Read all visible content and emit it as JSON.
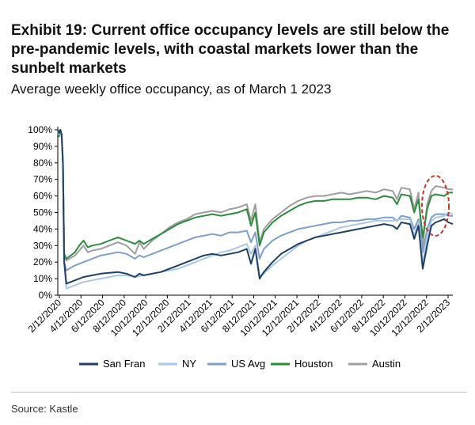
{
  "title": "Exhibit 19: Current office occupancy levels are still below the pre-pandemic levels, with coastal markets lower than the sunbelt markets",
  "subtitle": "Average weekly office occupancy, as of March 1 2023",
  "source": "Source: Kastle",
  "chart_data": {
    "type": "line",
    "xlabel": "",
    "ylabel": "",
    "ylim": [
      0,
      100
    ],
    "y_ticks": [
      "0%",
      "10%",
      "20%",
      "30%",
      "40%",
      "50%",
      "60%",
      "70%",
      "80%",
      "90%",
      "100%"
    ],
    "x_ticks": [
      "2/12/2020",
      "4/12/2020",
      "6/12/2020",
      "8/12/2020",
      "10/12/2020",
      "12/12/2020",
      "2/12/2021",
      "4/12/2021",
      "6/12/2021",
      "8/12/2021",
      "10/12/2021",
      "12/12/2021",
      "2/12/2022",
      "4/12/2022",
      "6/12/2022",
      "8/12/2022",
      "10/12/2022",
      "12/12/2022",
      "2/12/2023"
    ],
    "legend_position": "bottom",
    "grid": false,
    "annotation": "dashed red ellipse highlighting latest values",
    "series": [
      {
        "name": "San Fran",
        "color": "#1f3f63",
        "points": [
          [
            0,
            100
          ],
          [
            0.15,
            98
          ],
          [
            0.3,
            100
          ],
          [
            0.45,
            97
          ],
          [
            0.6,
            80
          ],
          [
            0.75,
            20
          ],
          [
            1,
            7
          ],
          [
            2,
            9
          ],
          [
            3,
            11
          ],
          [
            4,
            12
          ],
          [
            5,
            13
          ],
          [
            6,
            13.5
          ],
          [
            7,
            14
          ],
          [
            8,
            13
          ],
          [
            9,
            11
          ],
          [
            9.5,
            13
          ],
          [
            10,
            12
          ],
          [
            11,
            13
          ],
          [
            12,
            14
          ],
          [
            13,
            16
          ],
          [
            14,
            18
          ],
          [
            15,
            20
          ],
          [
            16,
            22
          ],
          [
            17,
            24
          ],
          [
            18,
            25
          ],
          [
            19,
            24
          ],
          [
            20,
            25
          ],
          [
            21,
            26
          ],
          [
            22,
            28
          ],
          [
            22.5,
            19
          ],
          [
            23,
            28
          ],
          [
            23.5,
            10
          ],
          [
            24,
            14
          ],
          [
            25,
            20
          ],
          [
            26,
            25
          ],
          [
            27,
            28
          ],
          [
            28,
            31
          ],
          [
            29,
            33
          ],
          [
            30,
            35
          ],
          [
            31,
            36
          ],
          [
            32,
            37
          ],
          [
            33,
            38
          ],
          [
            34,
            39
          ],
          [
            35,
            40
          ],
          [
            36,
            41
          ],
          [
            37,
            42
          ],
          [
            38,
            43
          ],
          [
            39,
            42
          ],
          [
            39.5,
            40
          ],
          [
            40,
            44
          ],
          [
            41,
            43
          ],
          [
            41.5,
            34
          ],
          [
            42,
            42
          ],
          [
            42.5,
            16
          ],
          [
            43,
            30
          ],
          [
            43.5,
            42
          ],
          [
            44,
            44
          ],
          [
            45,
            46
          ],
          [
            45.5,
            44
          ],
          [
            46,
            43
          ]
        ]
      },
      {
        "name": "NY",
        "color": "#a9c8e6",
        "points": [
          [
            0,
            100
          ],
          [
            0.15,
            97
          ],
          [
            0.3,
            100
          ],
          [
            0.45,
            96
          ],
          [
            0.6,
            80
          ],
          [
            0.75,
            20
          ],
          [
            1,
            4
          ],
          [
            2,
            6
          ],
          [
            3,
            8
          ],
          [
            4,
            9
          ],
          [
            5,
            10
          ],
          [
            6,
            11
          ],
          [
            7,
            12
          ],
          [
            8,
            12
          ],
          [
            9,
            11
          ],
          [
            10,
            12
          ],
          [
            11,
            13
          ],
          [
            12,
            14
          ],
          [
            13,
            15
          ],
          [
            14,
            16
          ],
          [
            15,
            18
          ],
          [
            16,
            20
          ],
          [
            17,
            22
          ],
          [
            18,
            24
          ],
          [
            19,
            26
          ],
          [
            20,
            27
          ],
          [
            21,
            29
          ],
          [
            22,
            31
          ],
          [
            22.5,
            25
          ],
          [
            23,
            30
          ],
          [
            23.5,
            12
          ],
          [
            24,
            13
          ],
          [
            25,
            18
          ],
          [
            26,
            22
          ],
          [
            27,
            26
          ],
          [
            28,
            30
          ],
          [
            29,
            33
          ],
          [
            30,
            35
          ],
          [
            31,
            37
          ],
          [
            32,
            39
          ],
          [
            33,
            41
          ],
          [
            34,
            42
          ],
          [
            35,
            43
          ],
          [
            36,
            44
          ],
          [
            37,
            45
          ],
          [
            38,
            45
          ],
          [
            39,
            45
          ],
          [
            40,
            46
          ],
          [
            41,
            46
          ],
          [
            41.5,
            36
          ],
          [
            42,
            44
          ],
          [
            42.5,
            19
          ],
          [
            43,
            35
          ],
          [
            43.5,
            45
          ],
          [
            44,
            47
          ],
          [
            45,
            48
          ],
          [
            45.5,
            50
          ],
          [
            46,
            49
          ]
        ]
      },
      {
        "name": "US Avg",
        "color": "#7f9fc4",
        "points": [
          [
            0,
            100
          ],
          [
            0.15,
            98
          ],
          [
            0.3,
            100
          ],
          [
            0.45,
            97
          ],
          [
            0.6,
            80
          ],
          [
            0.75,
            20
          ],
          [
            1,
            15
          ],
          [
            2,
            18
          ],
          [
            3,
            20
          ],
          [
            4,
            22
          ],
          [
            5,
            24
          ],
          [
            6,
            25
          ],
          [
            7,
            26
          ],
          [
            8,
            25
          ],
          [
            9,
            22
          ],
          [
            9.5,
            24
          ],
          [
            10,
            23
          ],
          [
            11,
            25
          ],
          [
            12,
            27
          ],
          [
            13,
            29
          ],
          [
            14,
            31
          ],
          [
            15,
            33
          ],
          [
            16,
            35
          ],
          [
            17,
            36
          ],
          [
            18,
            37
          ],
          [
            19,
            36
          ],
          [
            20,
            38
          ],
          [
            21,
            38
          ],
          [
            22,
            39
          ],
          [
            22.5,
            32
          ],
          [
            23,
            38
          ],
          [
            23.5,
            22
          ],
          [
            24,
            28
          ],
          [
            25,
            33
          ],
          [
            26,
            36
          ],
          [
            27,
            38
          ],
          [
            28,
            40
          ],
          [
            29,
            41
          ],
          [
            30,
            42
          ],
          [
            31,
            43
          ],
          [
            32,
            44
          ],
          [
            33,
            44
          ],
          [
            34,
            45
          ],
          [
            35,
            45
          ],
          [
            36,
            46
          ],
          [
            37,
            46
          ],
          [
            38,
            47
          ],
          [
            39,
            47
          ],
          [
            39.5,
            45
          ],
          [
            40,
            48
          ],
          [
            41,
            47
          ],
          [
            41.5,
            40
          ],
          [
            42,
            46
          ],
          [
            42.5,
            26
          ],
          [
            43,
            40
          ],
          [
            43.5,
            47
          ],
          [
            44,
            49
          ],
          [
            45,
            49
          ],
          [
            45.5,
            48
          ],
          [
            46,
            48
          ]
        ]
      },
      {
        "name": "Houston",
        "color": "#2e8b3e",
        "points": [
          [
            0,
            100
          ],
          [
            0.15,
            96
          ],
          [
            0.3,
            99
          ],
          [
            0.45,
            96
          ],
          [
            0.6,
            80
          ],
          [
            0.75,
            25
          ],
          [
            1,
            22
          ],
          [
            2,
            26
          ],
          [
            2.5,
            30
          ],
          [
            3,
            33
          ],
          [
            3.5,
            29
          ],
          [
            4,
            30
          ],
          [
            5,
            31
          ],
          [
            6,
            33
          ],
          [
            7,
            35
          ],
          [
            8,
            33
          ],
          [
            9,
            31
          ],
          [
            9.5,
            33
          ],
          [
            10,
            31
          ],
          [
            11,
            34
          ],
          [
            12,
            37
          ],
          [
            13,
            40
          ],
          [
            14,
            43
          ],
          [
            15,
            45
          ],
          [
            16,
            47
          ],
          [
            17,
            48
          ],
          [
            18,
            49
          ],
          [
            19,
            48
          ],
          [
            20,
            49
          ],
          [
            21,
            50
          ],
          [
            22,
            52
          ],
          [
            22.5,
            42
          ],
          [
            23,
            50
          ],
          [
            23.5,
            30
          ],
          [
            24,
            38
          ],
          [
            25,
            44
          ],
          [
            26,
            48
          ],
          [
            27,
            51
          ],
          [
            28,
            54
          ],
          [
            29,
            56
          ],
          [
            30,
            57
          ],
          [
            31,
            57
          ],
          [
            32,
            58
          ],
          [
            33,
            58
          ],
          [
            34,
            58
          ],
          [
            35,
            59
          ],
          [
            36,
            59
          ],
          [
            37,
            58
          ],
          [
            38,
            60
          ],
          [
            39,
            59
          ],
          [
            39.5,
            55
          ],
          [
            40,
            61
          ],
          [
            41,
            60
          ],
          [
            41.5,
            50
          ],
          [
            42,
            58
          ],
          [
            42.5,
            35
          ],
          [
            43,
            52
          ],
          [
            43.5,
            60
          ],
          [
            44,
            61
          ],
          [
            45,
            60
          ],
          [
            45.5,
            62
          ],
          [
            46,
            62
          ]
        ]
      },
      {
        "name": "Austin",
        "color": "#9e9e9e",
        "points": [
          [
            0,
            100
          ],
          [
            0.15,
            97
          ],
          [
            0.3,
            100
          ],
          [
            0.45,
            97
          ],
          [
            0.6,
            80
          ],
          [
            0.75,
            25
          ],
          [
            1,
            21
          ],
          [
            2,
            24
          ],
          [
            2.5,
            27
          ],
          [
            3,
            30
          ],
          [
            3.5,
            26
          ],
          [
            4,
            27
          ],
          [
            5,
            28
          ],
          [
            6,
            30
          ],
          [
            7,
            32
          ],
          [
            8,
            30
          ],
          [
            9,
            25
          ],
          [
            9.5,
            32
          ],
          [
            10,
            28
          ],
          [
            11,
            33
          ],
          [
            12,
            37
          ],
          [
            13,
            41
          ],
          [
            14,
            44
          ],
          [
            15,
            46
          ],
          [
            16,
            49
          ],
          [
            17,
            50
          ],
          [
            18,
            51
          ],
          [
            19,
            50
          ],
          [
            20,
            52
          ],
          [
            21,
            53
          ],
          [
            22,
            55
          ],
          [
            22.5,
            45
          ],
          [
            23,
            55
          ],
          [
            23.5,
            32
          ],
          [
            24,
            40
          ],
          [
            25,
            46
          ],
          [
            26,
            50
          ],
          [
            27,
            54
          ],
          [
            28,
            57
          ],
          [
            29,
            59
          ],
          [
            30,
            60
          ],
          [
            31,
            60
          ],
          [
            32,
            61
          ],
          [
            33,
            62
          ],
          [
            34,
            61
          ],
          [
            35,
            62
          ],
          [
            36,
            63
          ],
          [
            37,
            62
          ],
          [
            38,
            64
          ],
          [
            39,
            63
          ],
          [
            39.5,
            58
          ],
          [
            40,
            65
          ],
          [
            41,
            64
          ],
          [
            41.5,
            52
          ],
          [
            42,
            62
          ],
          [
            42.5,
            30
          ],
          [
            43,
            55
          ],
          [
            43.5,
            63
          ],
          [
            44,
            66
          ],
          [
            45,
            65
          ],
          [
            45.5,
            64
          ],
          [
            46,
            64
          ]
        ]
      }
    ]
  }
}
